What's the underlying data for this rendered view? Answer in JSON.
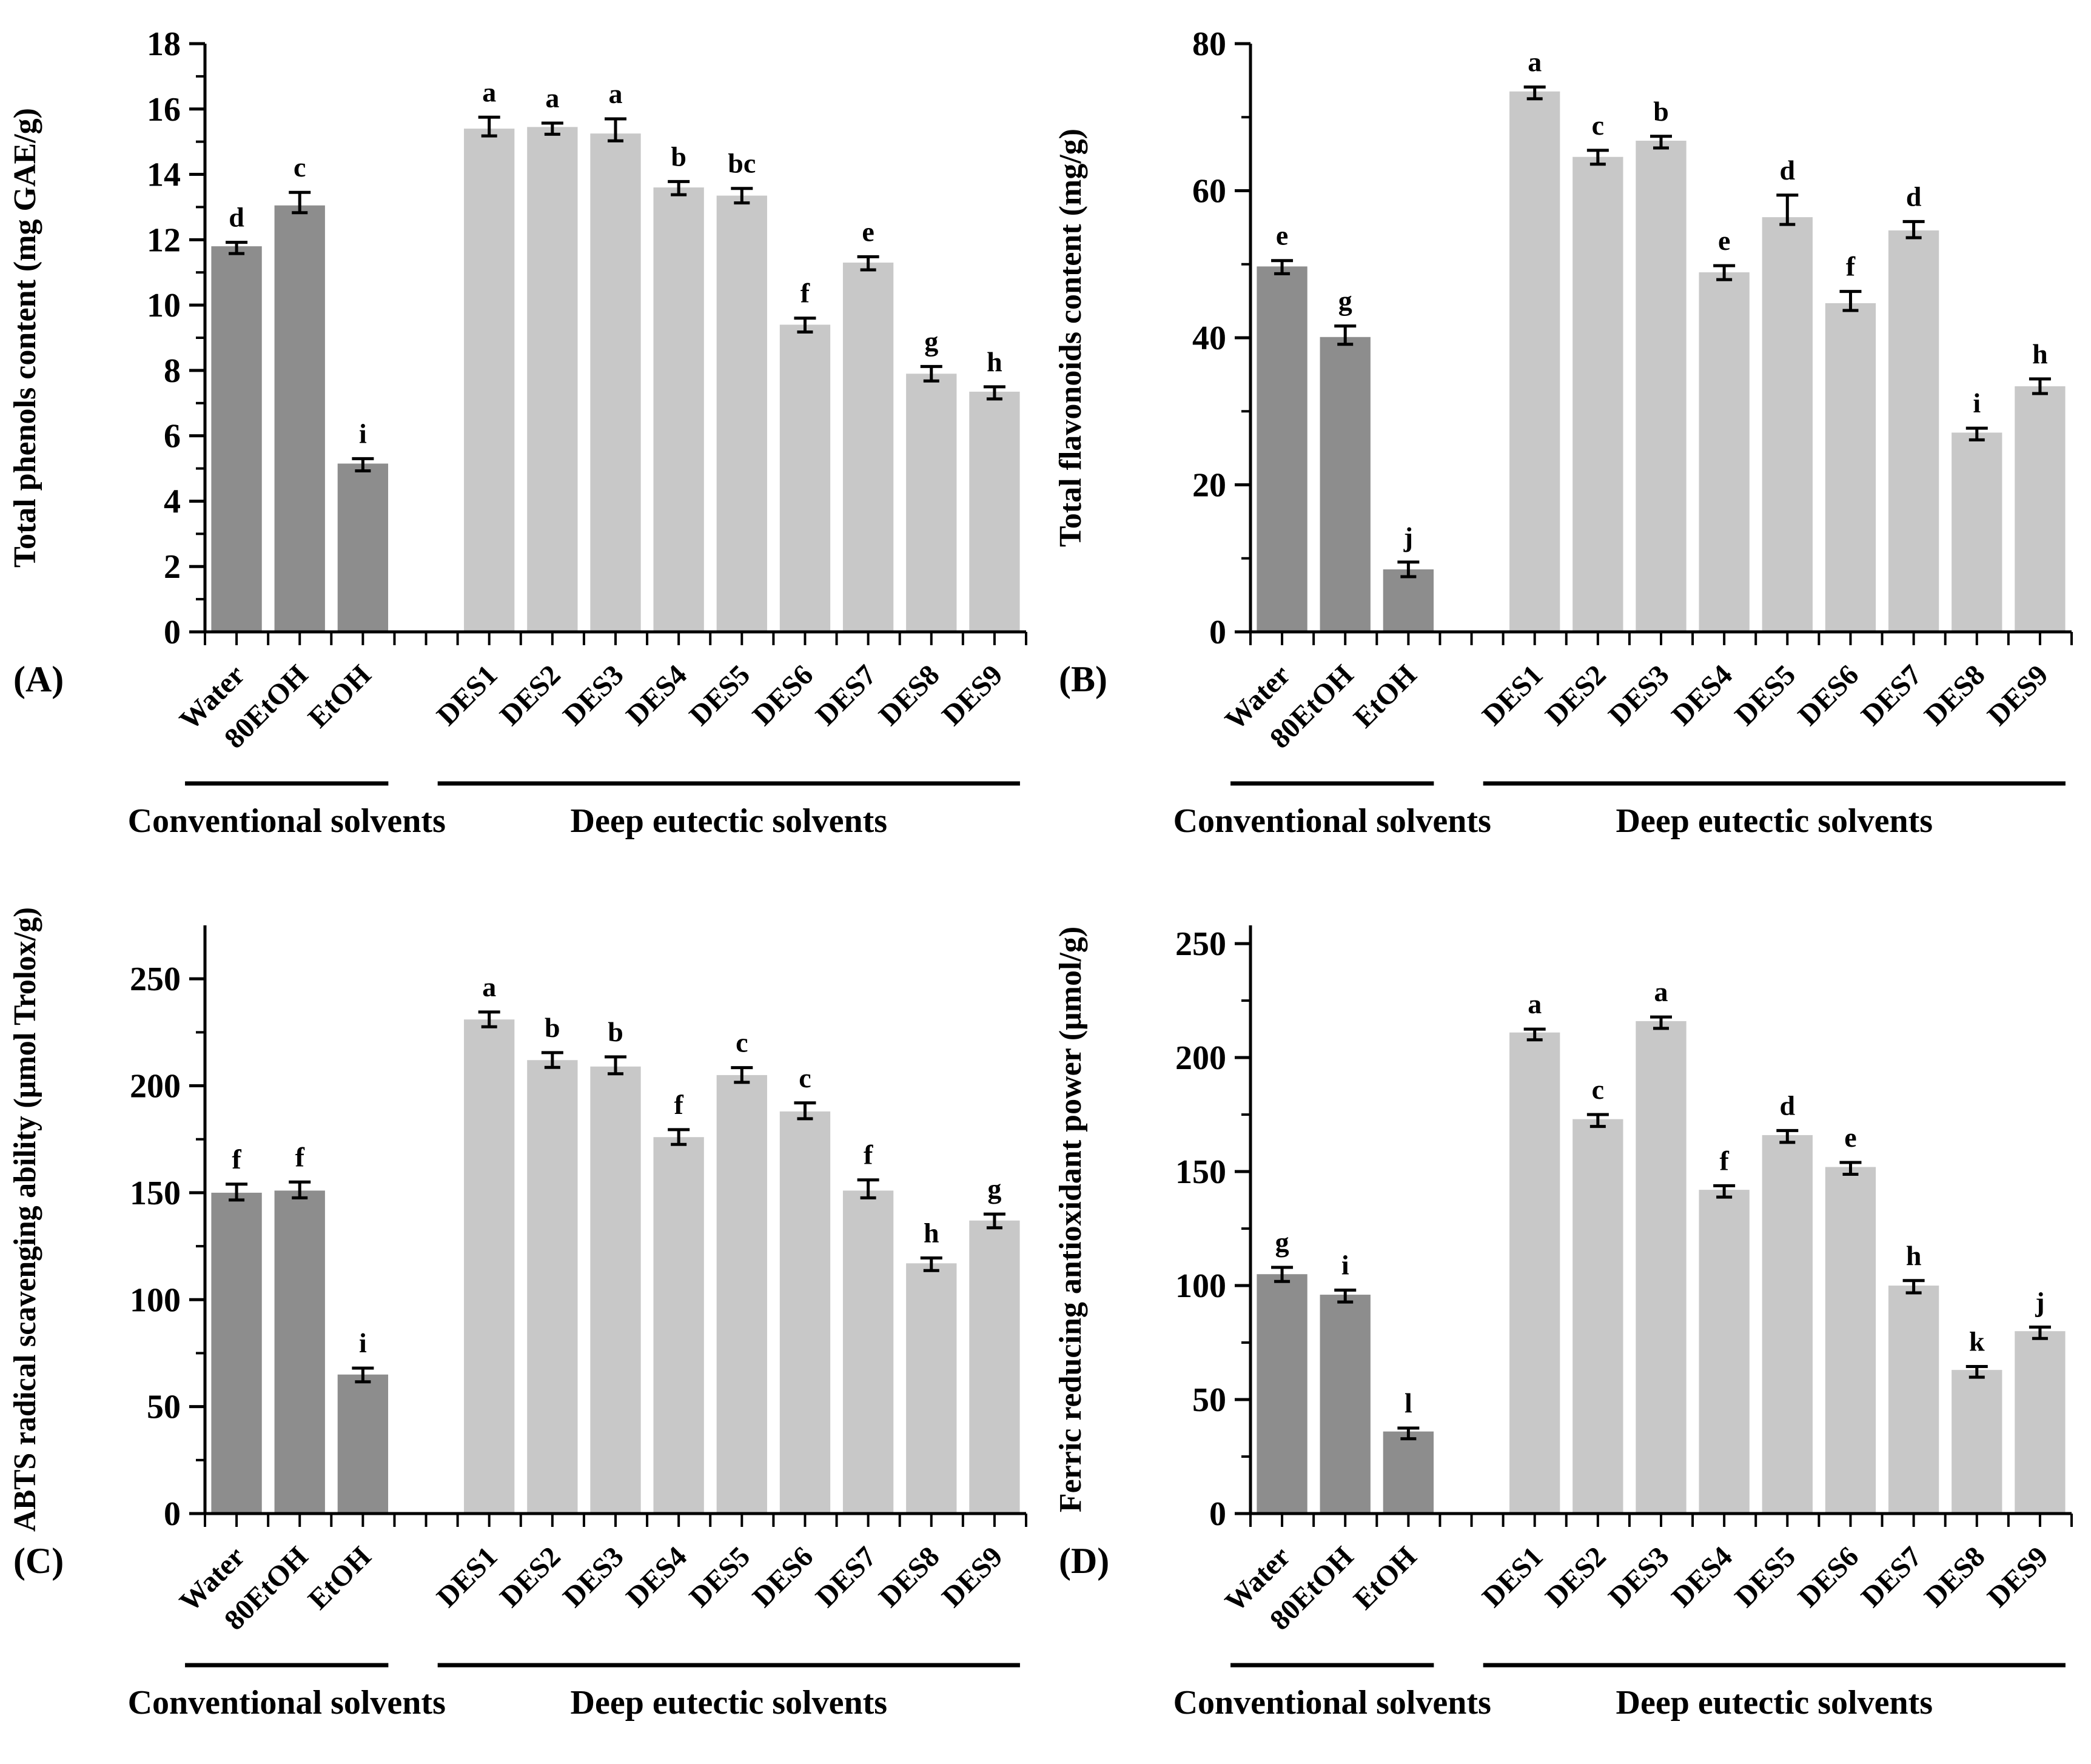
{
  "figure": {
    "background": "#ffffff",
    "text_color": "#000000",
    "bar_colors": {
      "conventional": "#8d8d8d",
      "des": "#c8c8c8"
    },
    "error_bar_color": "#000000",
    "group_labels": [
      "Conventional solvents",
      "Deep eutectic solvents"
    ],
    "categories": [
      "Water",
      "80EtOH",
      "EtOH",
      "DES1",
      "DES2",
      "DES3",
      "DES4",
      "DES5",
      "DES6",
      "DES7",
      "DES8",
      "DES9"
    ],
    "category_groups": [
      "conventional",
      "conventional",
      "conventional",
      "des",
      "des",
      "des",
      "des",
      "des",
      "des",
      "des",
      "des",
      "des"
    ]
  },
  "chart_data": [
    {
      "type": "bar",
      "panel": "(A)",
      "ylabel": "Total phenols content (mg GAE/g)",
      "ylim": [
        0,
        18
      ],
      "ytick_step": 2,
      "ytick_minor": 1,
      "ytick_max": 18,
      "axis_top": 18,
      "grid": false,
      "legend": "none",
      "categories": [
        "Water",
        "80EtOH",
        "EtOH",
        "DES1",
        "DES2",
        "DES3",
        "DES4",
        "DES5",
        "DES6",
        "DES7",
        "DES8",
        "DES9"
      ],
      "values": [
        11.8,
        13.05,
        5.15,
        15.4,
        15.45,
        15.25,
        13.6,
        13.35,
        9.4,
        11.3,
        7.9,
        7.35
      ],
      "errors": [
        0.12,
        0.4,
        0.15,
        0.35,
        0.12,
        0.45,
        0.18,
        0.22,
        0.2,
        0.18,
        0.22,
        0.15
      ],
      "letters": [
        "d",
        "c",
        "i",
        "a",
        "a",
        "a",
        "b",
        "bc",
        "f",
        "e",
        "g",
        "h"
      ]
    },
    {
      "type": "bar",
      "panel": "(B)",
      "ylabel": "Total flavonoids content (mg/g)",
      "ylim": [
        0,
        80
      ],
      "ytick_step": 20,
      "ytick_minor": 10,
      "ytick_max": 80,
      "axis_top": 80,
      "grid": false,
      "legend": "none",
      "categories": [
        "Water",
        "80EtOH",
        "EtOH",
        "DES1",
        "DES2",
        "DES3",
        "DES4",
        "DES5",
        "DES6",
        "DES7",
        "DES8",
        "DES9"
      ],
      "values": [
        49.7,
        40.1,
        8.5,
        73.5,
        64.6,
        66.8,
        48.9,
        56.4,
        44.7,
        54.6,
        27.1,
        33.4
      ],
      "errors": [
        0.8,
        1.5,
        1.0,
        0.6,
        0.9,
        0.6,
        0.9,
        3.0,
        1.6,
        1.2,
        0.6,
        1.0
      ],
      "letters": [
        "e",
        "g",
        "j",
        "a",
        "c",
        "b",
        "e",
        "d",
        "f",
        "d",
        "i",
        "h"
      ]
    },
    {
      "type": "bar",
      "panel": "(C)",
      "ylabel": "ABTS radical scavenging ability (μmol Trolox/g)",
      "ylim": [
        0,
        275
      ],
      "ytick_step": 50,
      "ytick_minor": 25,
      "ytick_max": 250,
      "axis_top": 275,
      "grid": false,
      "legend": "none",
      "categories": [
        "Water",
        "80EtOH",
        "EtOH",
        "DES1",
        "DES2",
        "DES3",
        "DES4",
        "DES5",
        "DES6",
        "DES7",
        "DES8",
        "DES9"
      ],
      "values": [
        150,
        151,
        65,
        231,
        212,
        209,
        176,
        205,
        188,
        151,
        117,
        137
      ],
      "errors": [
        4,
        4,
        3,
        3.5,
        3.5,
        4.5,
        3.5,
        3.5,
        4,
        5,
        2.5,
        3
      ],
      "letters": [
        "f",
        "f",
        "i",
        "a",
        "b",
        "b",
        "f",
        "c",
        "c",
        "f",
        "h",
        "g"
      ]
    },
    {
      "type": "bar",
      "panel": "(D)",
      "ylabel": "Ferric reducing antioxidant power (μmol/g)",
      "ylim": [
        0,
        258
      ],
      "ytick_step": 50,
      "ytick_minor": 25,
      "ytick_max": 250,
      "axis_top": 258,
      "grid": false,
      "legend": "none",
      "categories": [
        "Water",
        "80EtOH",
        "EtOH",
        "DES1",
        "DES2",
        "DES3",
        "DES4",
        "DES5",
        "DES6",
        "DES7",
        "DES8",
        "DES9"
      ],
      "values": [
        105,
        96,
        36,
        211,
        173,
        216,
        142,
        166,
        152,
        100,
        63,
        80
      ],
      "errors": [
        3,
        2,
        1.5,
        1.5,
        2,
        1.8,
        1.8,
        2,
        2,
        2.2,
        1.5,
        1.8
      ],
      "letters": [
        "g",
        "i",
        "l",
        "a",
        "c",
        "a",
        "f",
        "d",
        "e",
        "h",
        "k",
        "j"
      ]
    }
  ]
}
